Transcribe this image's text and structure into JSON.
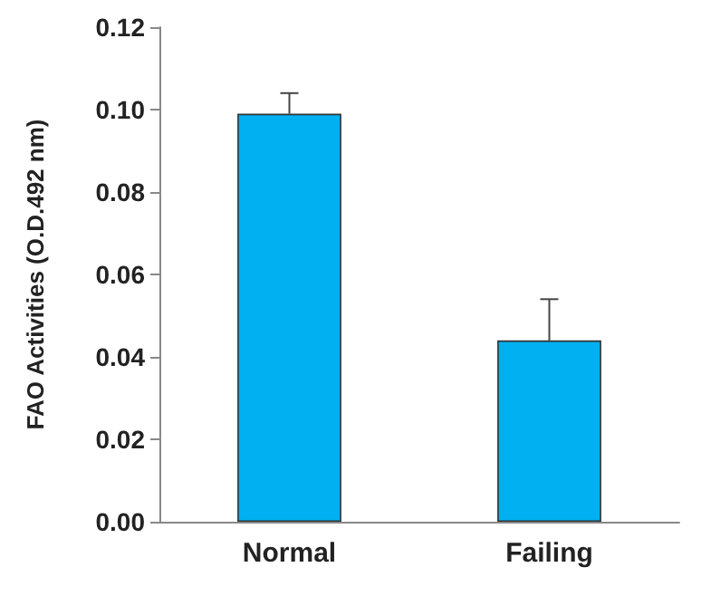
{
  "chart_data": {
    "type": "bar",
    "ylabel": "FAO Activities (O.D.492 nm)",
    "categories": [
      "Normal",
      "Failing"
    ],
    "values": [
      0.099,
      0.044
    ],
    "errors": [
      [
        0.099,
        0.104
      ],
      [
        0.044,
        0.054
      ]
    ],
    "color": "#00b0f0",
    "ylim": [
      0,
      0.12
    ],
    "yticks": [
      {
        "value": 0,
        "label": "0.00"
      },
      {
        "value": 0.02,
        "label": "0.02"
      },
      {
        "value": 0.04,
        "label": "0.04"
      },
      {
        "value": 0.06,
        "label": "0.06"
      },
      {
        "value": 0.08,
        "label": "0.08"
      },
      {
        "value": 0.1,
        "label": "0.10"
      },
      {
        "value": 0.12,
        "label": "0.12"
      }
    ],
    "grid": false
  }
}
